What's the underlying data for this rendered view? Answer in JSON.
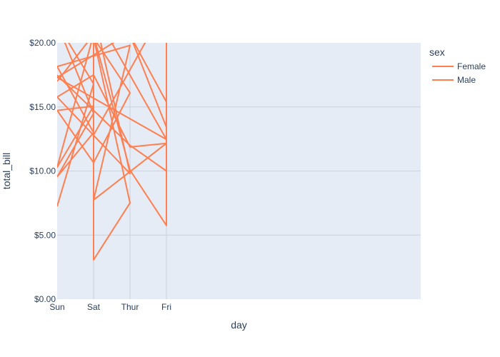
{
  "chart_data": {
    "type": "line",
    "xlabel": "day",
    "ylabel": "total_bill",
    "categories": [
      "Sun",
      "Sat",
      "Thur",
      "Fri"
    ],
    "ylim": [
      0,
      20
    ],
    "yticks": [
      0,
      5,
      10,
      15,
      20
    ],
    "ytick_labels": [
      "$0.00",
      "$5.00",
      "$10.00",
      "$15.00",
      "$20.00"
    ],
    "grid": true,
    "legend": {
      "title": "sex",
      "position": "top-right"
    },
    "colors": {
      "line": "#ff7f50",
      "plot_bg": "#e5ecf6",
      "grid": "#ffffff",
      "text": "#2a3f5f"
    },
    "series": [
      {
        "name": "Female",
        "points": [
          [
            "Sun",
            16.99
          ],
          [
            "Sat",
            20.65
          ],
          [
            "Sun",
            10.29
          ],
          [
            "Sat",
            15.06
          ],
          [
            "Sun",
            14.73
          ],
          [
            "Sat",
            10.65
          ],
          [
            "Thur",
            16.1
          ],
          [
            "Sat",
            20.4
          ],
          [
            "Thur",
            7.51
          ],
          [
            "Sat",
            3.07
          ],
          [
            "Sat",
            20.6
          ],
          [
            "Thur",
            10.07
          ],
          [
            "Fri",
            5.75
          ],
          [
            "Fri",
            13.42
          ],
          [
            "Thur",
            20.6
          ],
          [
            "Fri",
            15.38
          ],
          [
            "Fri",
            22.0
          ],
          [
            "Fri",
            10.0
          ],
          [
            "Thur",
            12.0
          ],
          [
            "Sun",
            17.47
          ]
        ]
      },
      {
        "name": "Male",
        "points": [
          [
            "Sun",
            7.25
          ],
          [
            "Sat",
            16.8
          ],
          [
            "Sun",
            21.5
          ],
          [
            "Sat",
            14.5
          ],
          [
            "Sun",
            9.55
          ],
          [
            "Sat",
            13.0
          ],
          [
            "Sun",
            18.15
          ],
          [
            "Thur",
            19.8
          ],
          [
            "Sat",
            7.74
          ],
          [
            "Fri",
            12.16
          ],
          [
            "Thur",
            11.87
          ],
          [
            "Sat",
            17.5
          ],
          [
            "Sun",
            15.77
          ],
          [
            "Thur",
            9.8
          ],
          [
            "Sat",
            22.5
          ],
          [
            "Fri",
            12.46
          ],
          [
            "Sun",
            17.3
          ],
          [
            "Thur",
            20.8
          ],
          [
            "Fri",
            23.0
          ],
          [
            "Sat",
            12.8
          ]
        ]
      }
    ]
  }
}
